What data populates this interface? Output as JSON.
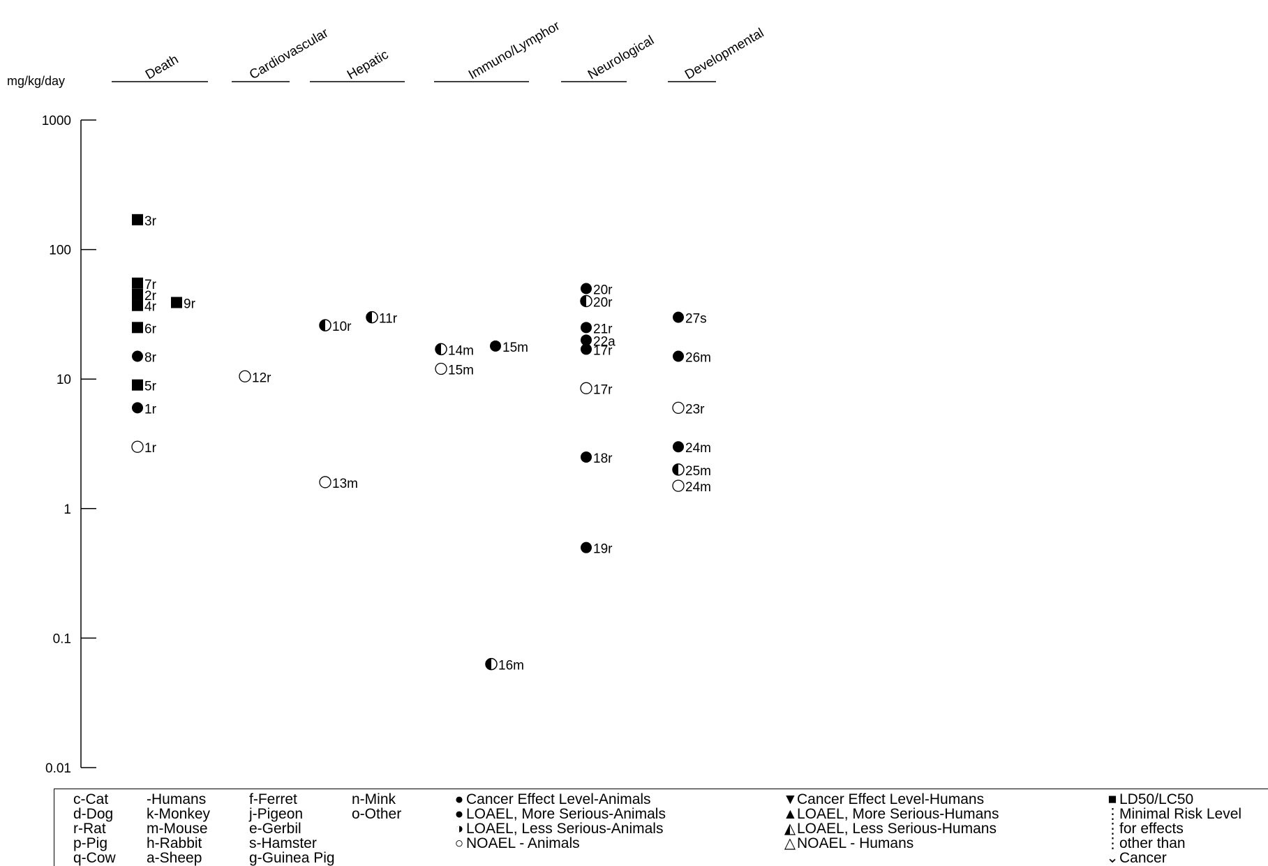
{
  "chart_data": {
    "type": "scatter",
    "ylabel": "mg/kg/day",
    "yscale": "log",
    "ylim": [
      0.01,
      1000
    ],
    "yticks": [
      "1000",
      "100",
      "10",
      "1",
      "0.1",
      "0.01"
    ],
    "categories": [
      "Death",
      "Cardiovascular",
      "Hepatic",
      "Immuno/Lymphor",
      "Neurological",
      "Developmental"
    ],
    "points": [
      {
        "category": "Death",
        "y": 170,
        "marker": "square",
        "label": "3r"
      },
      {
        "category": "Death",
        "y": 55,
        "marker": "square",
        "label": "7r"
      },
      {
        "category": "Death",
        "y": 45,
        "marker": "square",
        "label": "2r"
      },
      {
        "category": "Death",
        "y": 37,
        "marker": "square",
        "label": "4r"
      },
      {
        "category": "Death",
        "y": 39,
        "marker": "square",
        "label": "9r"
      },
      {
        "category": "Death",
        "y": 25,
        "marker": "square",
        "label": "6r"
      },
      {
        "category": "Death",
        "y": 15,
        "marker": "filled",
        "label": "8r"
      },
      {
        "category": "Death",
        "y": 9,
        "marker": "square",
        "label": "5r"
      },
      {
        "category": "Death",
        "y": 6,
        "marker": "filled",
        "label": "1r"
      },
      {
        "category": "Death",
        "y": 3,
        "marker": "open",
        "label": "1r"
      },
      {
        "category": "Cardiovascular",
        "y": 10.5,
        "marker": "open",
        "label": "12r"
      },
      {
        "category": "Hepatic",
        "y": 26,
        "marker": "half",
        "label": "10r"
      },
      {
        "category": "Hepatic",
        "y": 30,
        "marker": "half",
        "label": "11r"
      },
      {
        "category": "Hepatic",
        "y": 1.6,
        "marker": "open",
        "label": "13m"
      },
      {
        "category": "Immuno/Lymphor",
        "y": 17,
        "marker": "half",
        "label": "14m"
      },
      {
        "category": "Immuno/Lymphor",
        "y": 12,
        "marker": "open",
        "label": "15m"
      },
      {
        "category": "Immuno/Lymphor",
        "y": 18,
        "marker": "filled",
        "label": "15m"
      },
      {
        "category": "Immuno/Lymphor",
        "y": 0.063,
        "marker": "half",
        "label": "16m"
      },
      {
        "category": "Neurological",
        "y": 50,
        "marker": "filled",
        "label": "20r"
      },
      {
        "category": "Neurological",
        "y": 40,
        "marker": "half",
        "label": "20r"
      },
      {
        "category": "Neurological",
        "y": 25,
        "marker": "filled",
        "label": "21r"
      },
      {
        "category": "Neurological",
        "y": 20,
        "marker": "filled",
        "label": "22a"
      },
      {
        "category": "Neurological",
        "y": 17,
        "marker": "filled",
        "label": "17r"
      },
      {
        "category": "Neurological",
        "y": 8.5,
        "marker": "open",
        "label": "17r"
      },
      {
        "category": "Neurological",
        "y": 2.5,
        "marker": "filled",
        "label": "18r"
      },
      {
        "category": "Neurological",
        "y": 0.5,
        "marker": "filled",
        "label": "19r"
      },
      {
        "category": "Developmental",
        "y": 30,
        "marker": "filled",
        "label": "27s"
      },
      {
        "category": "Developmental",
        "y": 15,
        "marker": "filled",
        "label": "26m"
      },
      {
        "category": "Developmental",
        "y": 6,
        "marker": "open",
        "label": "23r"
      },
      {
        "category": "Developmental",
        "y": 3,
        "marker": "filled",
        "label": "24m"
      },
      {
        "category": "Developmental",
        "y": 2,
        "marker": "half",
        "label": "25m"
      },
      {
        "category": "Developmental",
        "y": 1.5,
        "marker": "open",
        "label": "24m"
      }
    ]
  },
  "legend": {
    "species": [
      [
        "c-Cat",
        "d-Dog",
        "r-Rat",
        "p-Pig",
        "q-Cow"
      ],
      [
        "-Humans",
        "k-Monkey",
        "m-Mouse",
        "h-Rabbit",
        "a-Sheep"
      ],
      [
        "f-Ferret",
        "j-Pigeon",
        "e-Gerbil",
        "s-Hamster",
        "g-Guinea Pig"
      ],
      [
        "n-Mink",
        "o-Other"
      ]
    ],
    "animal_effects": [
      "Cancer Effect Level-Animals",
      "LOAEL, More Serious-Animals",
      "LOAEL, Less Serious-Animals",
      "NOAEL - Animals"
    ],
    "human_effects": [
      "Cancer Effect Level-Humans",
      "LOAEL, More Serious-Humans",
      "LOAEL, Less Serious-Humans",
      "NOAEL - Humans"
    ],
    "other": [
      "LD50/LC50",
      "Minimal Risk Level",
      "for effects",
      "other than",
      "Cancer"
    ]
  }
}
